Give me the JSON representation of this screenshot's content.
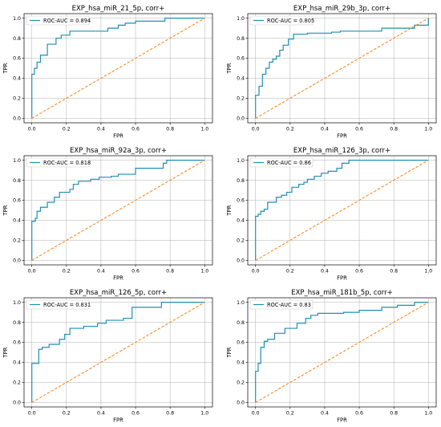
{
  "chart_data": [
    {
      "type": "line",
      "title": "EXP_hsa_miR_21_5p, corr+",
      "xlabel": "FPR",
      "ylabel": "TPR",
      "xlim": [
        0,
        1
      ],
      "ylim": [
        0,
        1
      ],
      "xticks": [
        "0.0",
        "0.2",
        "0.4",
        "0.6",
        "0.8",
        "1.0"
      ],
      "yticks": [
        "0.0",
        "0.2",
        "0.4",
        "0.6",
        "0.8",
        "1.0"
      ],
      "grid": true,
      "legend_position": "top-left",
      "series": [
        {
          "name": "ROC-AUC = 0.894",
          "style": "solid",
          "color": "#1f8fb4",
          "x": [
            0,
            0,
            0.015,
            0.015,
            0.03,
            0.03,
            0.05,
            0.05,
            0.09,
            0.09,
            0.14,
            0.14,
            0.17,
            0.17,
            0.22,
            0.22,
            0.44,
            0.44,
            0.5,
            0.5,
            0.54,
            0.54,
            0.6,
            0.6,
            0.77,
            0.77,
            1.0
          ],
          "y": [
            0,
            0.44,
            0.44,
            0.5,
            0.5,
            0.56,
            0.56,
            0.63,
            0.63,
            0.74,
            0.74,
            0.8,
            0.8,
            0.83,
            0.83,
            0.87,
            0.87,
            0.9,
            0.9,
            0.93,
            0.93,
            0.95,
            0.95,
            0.97,
            0.97,
            1.0,
            1.0
          ]
        },
        {
          "style": "dashed",
          "color": "#ff7f0e",
          "x": [
            0,
            1
          ],
          "y": [
            0,
            1
          ]
        }
      ]
    },
    {
      "type": "line",
      "title": "EXP_hsa_miR_29b_3p, corr+",
      "xlabel": "FPR",
      "ylabel": "TPR",
      "xlim": [
        0,
        1
      ],
      "ylim": [
        0,
        1
      ],
      "xticks": [
        "0.0",
        "0.2",
        "0.4",
        "0.6",
        "0.8",
        "1.0"
      ],
      "yticks": [
        "0.0",
        "0.2",
        "0.4",
        "0.6",
        "0.8",
        "1.0"
      ],
      "grid": true,
      "legend_position": "top-left",
      "series": [
        {
          "name": "ROC-AUC = 0.805",
          "style": "solid",
          "color": "#1f8fb4",
          "x": [
            0,
            0,
            0.02,
            0.02,
            0.04,
            0.04,
            0.06,
            0.06,
            0.08,
            0.08,
            0.1,
            0.1,
            0.12,
            0.12,
            0.14,
            0.14,
            0.16,
            0.16,
            0.19,
            0.19,
            0.22,
            0.22,
            0.3,
            0.3,
            0.44,
            0.44,
            0.49,
            0.49,
            0.73,
            0.73,
            0.92,
            0.92,
            1.0,
            1.0
          ],
          "y": [
            0,
            0.23,
            0.23,
            0.32,
            0.32,
            0.44,
            0.44,
            0.5,
            0.5,
            0.56,
            0.56,
            0.59,
            0.59,
            0.62,
            0.62,
            0.68,
            0.68,
            0.73,
            0.73,
            0.79,
            0.79,
            0.84,
            0.84,
            0.85,
            0.85,
            0.86,
            0.86,
            0.87,
            0.87,
            0.9,
            0.9,
            0.93,
            0.93,
            1.0
          ]
        },
        {
          "style": "dashed",
          "color": "#ff7f0e",
          "x": [
            0,
            1
          ],
          "y": [
            0,
            1
          ]
        }
      ]
    },
    {
      "type": "line",
      "title": "EXP_hsa_miR_92a_3p, corr+",
      "xlabel": "FPR",
      "ylabel": "TPR",
      "xlim": [
        0,
        1
      ],
      "ylim": [
        0,
        1
      ],
      "xticks": [
        "0.0",
        "0.2",
        "0.4",
        "0.6",
        "0.8",
        "1.0"
      ],
      "yticks": [
        "0.0",
        "0.2",
        "0.4",
        "0.6",
        "0.8",
        "1.0"
      ],
      "grid": true,
      "legend_position": "top-left",
      "series": [
        {
          "name": "ROC-AUC = 0.818",
          "style": "solid",
          "color": "#1f8fb4",
          "x": [
            0,
            0,
            0.02,
            0.02,
            0.03,
            0.03,
            0.05,
            0.05,
            0.09,
            0.09,
            0.13,
            0.13,
            0.16,
            0.16,
            0.22,
            0.22,
            0.24,
            0.24,
            0.27,
            0.27,
            0.34,
            0.34,
            0.39,
            0.39,
            0.46,
            0.46,
            0.5,
            0.5,
            0.6,
            0.6,
            0.76,
            0.76,
            0.78,
            0.78,
            1.0
          ],
          "y": [
            0,
            0.39,
            0.39,
            0.42,
            0.42,
            0.49,
            0.49,
            0.53,
            0.53,
            0.58,
            0.58,
            0.63,
            0.63,
            0.68,
            0.68,
            0.71,
            0.71,
            0.76,
            0.76,
            0.79,
            0.79,
            0.81,
            0.81,
            0.83,
            0.83,
            0.84,
            0.84,
            0.86,
            0.86,
            0.92,
            0.92,
            0.97,
            0.97,
            1.0,
            1.0
          ]
        },
        {
          "style": "dashed",
          "color": "#ff7f0e",
          "x": [
            0,
            1
          ],
          "y": [
            0,
            1
          ]
        }
      ]
    },
    {
      "type": "line",
      "title": "EXP_hsa_miR_126_3p, corr+",
      "xlabel": "FPR",
      "ylabel": "TPR",
      "xlim": [
        0,
        1
      ],
      "ylim": [
        0,
        1
      ],
      "xticks": [
        "0.0",
        "0.2",
        "0.4",
        "0.6",
        "0.8",
        "1.0"
      ],
      "yticks": [
        "0.0",
        "0.2",
        "0.4",
        "0.6",
        "0.8",
        "1.0"
      ],
      "grid": true,
      "legend_position": "top-left",
      "series": [
        {
          "name": "ROC-AUC = 0.86",
          "style": "solid",
          "color": "#1f8fb4",
          "x": [
            0,
            0,
            0.015,
            0.015,
            0.03,
            0.03,
            0.05,
            0.05,
            0.07,
            0.07,
            0.12,
            0.12,
            0.15,
            0.15,
            0.18,
            0.18,
            0.21,
            0.21,
            0.25,
            0.25,
            0.28,
            0.28,
            0.3,
            0.3,
            0.34,
            0.34,
            0.38,
            0.38,
            0.42,
            0.42,
            0.47,
            0.47,
            0.5,
            0.5,
            0.54,
            0.54,
            1.0
          ],
          "y": [
            0,
            0.44,
            0.44,
            0.46,
            0.46,
            0.49,
            0.49,
            0.51,
            0.51,
            0.58,
            0.58,
            0.63,
            0.63,
            0.65,
            0.65,
            0.68,
            0.68,
            0.73,
            0.73,
            0.76,
            0.76,
            0.78,
            0.78,
            0.81,
            0.81,
            0.84,
            0.84,
            0.87,
            0.87,
            0.89,
            0.89,
            0.92,
            0.92,
            0.97,
            0.97,
            1.0,
            1.0
          ]
        },
        {
          "style": "dashed",
          "color": "#ff7f0e",
          "x": [
            0,
            1
          ],
          "y": [
            0,
            1
          ]
        }
      ]
    },
    {
      "type": "line",
      "title": "EXP_hsa_miR_126_5p, corr+",
      "xlabel": "FPR",
      "ylabel": "TPR",
      "xlim": [
        0,
        1
      ],
      "ylim": [
        0,
        1
      ],
      "xticks": [
        "0.0",
        "0.2",
        "0.4",
        "0.6",
        "0.8",
        "1.0"
      ],
      "yticks": [
        "0.0",
        "0.2",
        "0.4",
        "0.6",
        "0.8",
        "1.0"
      ],
      "grid": true,
      "legend_position": "top-left",
      "series": [
        {
          "name": "ROC-AUC = 0.831",
          "style": "solid",
          "color": "#1f8fb4",
          "x": [
            0,
            0,
            0.04,
            0.04,
            0.06,
            0.06,
            0.1,
            0.1,
            0.16,
            0.16,
            0.19,
            0.19,
            0.22,
            0.22,
            0.3,
            0.3,
            0.38,
            0.38,
            0.43,
            0.43,
            0.53,
            0.53,
            0.58,
            0.58,
            0.75,
            0.75,
            1.0
          ],
          "y": [
            0,
            0.39,
            0.39,
            0.53,
            0.53,
            0.55,
            0.55,
            0.58,
            0.58,
            0.63,
            0.63,
            0.68,
            0.68,
            0.74,
            0.74,
            0.76,
            0.76,
            0.79,
            0.79,
            0.82,
            0.82,
            0.84,
            0.84,
            0.95,
            0.95,
            1.0,
            1.0
          ]
        },
        {
          "style": "dashed",
          "color": "#ff7f0e",
          "x": [
            0,
            1
          ],
          "y": [
            0,
            1
          ]
        }
      ]
    },
    {
      "type": "line",
      "title": "EXP_hsa_miR_181b_5p, corr+",
      "xlabel": "FPR",
      "ylabel": "TPR",
      "xlim": [
        0,
        1
      ],
      "ylim": [
        0,
        1
      ],
      "xticks": [
        "0.0",
        "0.2",
        "0.4",
        "0.6",
        "0.8",
        "1.0"
      ],
      "yticks": [
        "0.0",
        "0.2",
        "0.4",
        "0.6",
        "0.8",
        "1.0"
      ],
      "grid": true,
      "legend_position": "top-left",
      "series": [
        {
          "name": "ROC-AUC = 0.83",
          "style": "solid",
          "color": "#1f8fb4",
          "x": [
            0,
            0,
            0.015,
            0.015,
            0.03,
            0.03,
            0.05,
            0.05,
            0.07,
            0.07,
            0.11,
            0.11,
            0.17,
            0.17,
            0.24,
            0.24,
            0.29,
            0.29,
            0.32,
            0.32,
            0.36,
            0.36,
            0.51,
            0.51,
            0.6,
            0.6,
            0.73,
            0.73,
            0.82,
            0.82,
            0.92,
            0.92,
            1.0
          ],
          "y": [
            0,
            0.31,
            0.31,
            0.39,
            0.39,
            0.55,
            0.55,
            0.61,
            0.61,
            0.63,
            0.63,
            0.69,
            0.69,
            0.74,
            0.74,
            0.79,
            0.79,
            0.84,
            0.84,
            0.87,
            0.87,
            0.89,
            0.89,
            0.9,
            0.9,
            0.92,
            0.92,
            0.95,
            0.95,
            0.97,
            0.97,
            1.0,
            1.0
          ]
        },
        {
          "style": "dashed",
          "color": "#ff7f0e",
          "x": [
            0,
            1
          ],
          "y": [
            0,
            1
          ]
        }
      ]
    }
  ]
}
